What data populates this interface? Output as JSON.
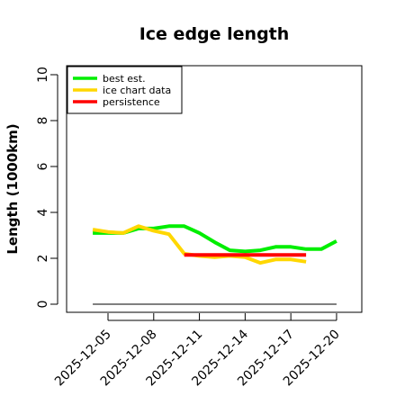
{
  "chart_data": {
    "type": "line",
    "title": "Ice edge length",
    "xlabel": "",
    "ylabel": "Length (1000km)",
    "ylim": [
      -0.3,
      10.5
    ],
    "yticks": [
      0,
      2,
      4,
      6,
      8,
      10
    ],
    "xticks": [
      "2025-12-05",
      "2025-12-08",
      "2025-12-11",
      "2025-12-14",
      "2025-12-17",
      "2025-12-20"
    ],
    "legend_position": "top-left",
    "grid": false,
    "zero_line": {
      "x_start": "2025-12-04",
      "x_end": "2025-12-20",
      "y": 0,
      "color": "#555555"
    },
    "series": [
      {
        "name": "best est.",
        "color": "#00ee00",
        "x": [
          "2025-12-04",
          "2025-12-05",
          "2025-12-06",
          "2025-12-07",
          "2025-12-08",
          "2025-12-09",
          "2025-12-10",
          "2025-12-11",
          "2025-12-12",
          "2025-12-13",
          "2025-12-14",
          "2025-12-15",
          "2025-12-16",
          "2025-12-17",
          "2025-12-18",
          "2025-12-19",
          "2025-12-20"
        ],
        "y": [
          3.1,
          3.1,
          3.1,
          3.3,
          3.3,
          3.4,
          3.4,
          3.1,
          2.7,
          2.35,
          2.3,
          2.35,
          2.5,
          2.5,
          2.4,
          2.4,
          2.75
        ]
      },
      {
        "name": "ice chart data",
        "color": "#ffd700",
        "x": [
          "2025-12-04",
          "2025-12-05",
          "2025-12-06",
          "2025-12-07",
          "2025-12-08",
          "2025-12-09",
          "2025-12-10",
          "2025-12-11",
          "2025-12-12",
          "2025-12-13",
          "2025-12-14",
          "2025-12-15",
          "2025-12-16",
          "2025-12-17",
          "2025-12-18"
        ],
        "y": [
          3.25,
          3.15,
          3.1,
          3.4,
          3.2,
          3.05,
          2.2,
          2.1,
          2.05,
          2.1,
          2.05,
          1.8,
          1.95,
          1.95,
          1.85
        ]
      },
      {
        "name": "persistence",
        "color": "#ff0000",
        "x": [
          "2025-12-10",
          "2025-12-11",
          "2025-12-12",
          "2025-12-13",
          "2025-12-14",
          "2025-12-15",
          "2025-12-16",
          "2025-12-17",
          "2025-12-18"
        ],
        "y": [
          2.15,
          2.15,
          2.15,
          2.15,
          2.15,
          2.15,
          2.15,
          2.15,
          2.15
        ]
      }
    ]
  }
}
